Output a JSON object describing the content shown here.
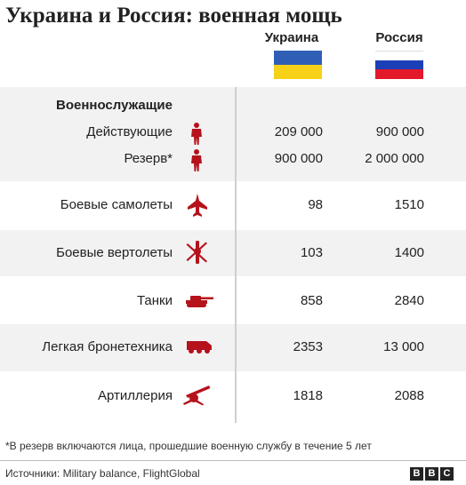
{
  "title": "Украина и Россия: военная мощь",
  "columns": {
    "ukraine": "Украина",
    "russia": "Россия"
  },
  "colors": {
    "ukraine_blue": "#2f5fb5",
    "ukraine_yellow": "#f7d117",
    "russia_white": "#ffffff",
    "russia_blue": "#1c3fb8",
    "russia_red": "#e3182b",
    "icon_red": "#b5121b",
    "row_shade": "#f2f2f2"
  },
  "chart_data": {
    "type": "table",
    "columns": [
      "Украина",
      "Россия"
    ],
    "rows": [
      {
        "section": "Военнослужащие",
        "label": "Действующие",
        "icon": "soldier-icon",
        "ukraine": "209 000",
        "russia": "900 000"
      },
      {
        "section": "Военнослужащие",
        "label": "Резерв*",
        "icon": "soldier-icon",
        "ukraine": "900 000",
        "russia": "2 000 000"
      },
      {
        "label": "Боевые самолеты",
        "icon": "fighter-jet-icon",
        "ukraine": "98",
        "russia": "1510"
      },
      {
        "label": "Боевые вертолеты",
        "icon": "helicopter-icon",
        "ukraine": "103",
        "russia": "1400"
      },
      {
        "label": "Танки",
        "icon": "tank-icon",
        "ukraine": "858",
        "russia": "2840"
      },
      {
        "label": "Легкая бронетехника",
        "icon": "armored-vehicle-icon",
        "ukraine": "2353",
        "russia": "13 000"
      },
      {
        "label": "Артиллерия",
        "icon": "artillery-icon",
        "ukraine": "1818",
        "russia": "2088"
      }
    ]
  },
  "sections": {
    "personnel": "Военнослужащие"
  },
  "footnote": "*В резерв включаются лица, прошедшие военную службу в течение 5 лет",
  "source": "Источники: Military balance, FlightGlobal",
  "logo": [
    "B",
    "B",
    "C"
  ]
}
